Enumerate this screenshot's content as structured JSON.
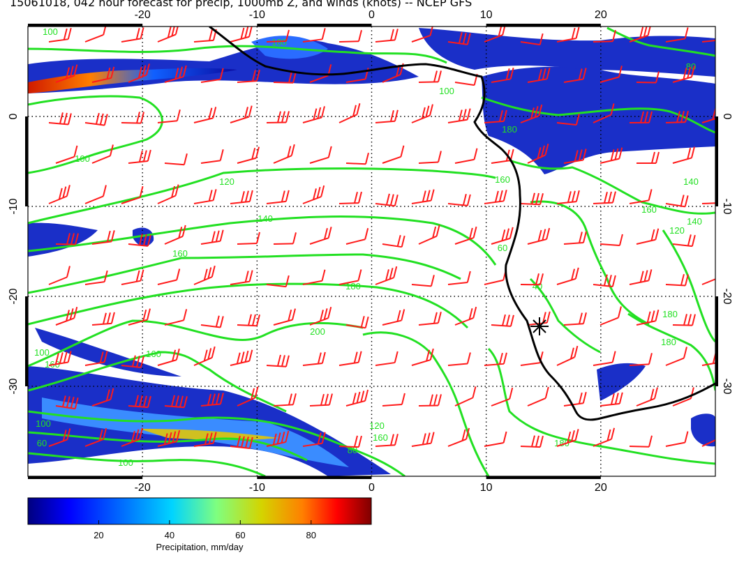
{
  "title": "15061018, 042 hour forecast for precip, 1000mb Z, and winds (knots) -- NCEP GFS",
  "map": {
    "lon_range": [
      -30,
      30
    ],
    "lat_range": [
      -40,
      10
    ],
    "lon_ticks": [
      "-20",
      "-10",
      "0",
      "10",
      "20"
    ],
    "lat_ticks": [
      "0",
      "-10",
      "-20",
      "-30"
    ],
    "gridlines": "dotted",
    "marker": {
      "type": "asterisk",
      "lon": 15,
      "lat": -23.5
    }
  },
  "contours": {
    "color": "#22e022",
    "labels": [
      "100",
      "100",
      "100",
      "120",
      "140",
      "160",
      "180",
      "200",
      "180",
      "160",
      "140",
      "120",
      "100",
      "60",
      "180",
      "160",
      "40",
      "60",
      "180",
      "140",
      "120",
      "100",
      "160",
      "180",
      "180",
      "80",
      "100",
      "80",
      "160",
      "160"
    ]
  },
  "wind_barbs": {
    "color": "#ff1a1a",
    "units": "knots"
  },
  "colorbar": {
    "label": "Precipitation, mm/day",
    "ticks": [
      "20",
      "40",
      "60",
      "80"
    ],
    "range": [
      0,
      97
    ],
    "colors": [
      "#00007f",
      "#0000ff",
      "#007fff",
      "#00d4ff",
      "#7fff7f",
      "#d4d400",
      "#ff7f00",
      "#ff0000",
      "#7f0000"
    ]
  }
}
